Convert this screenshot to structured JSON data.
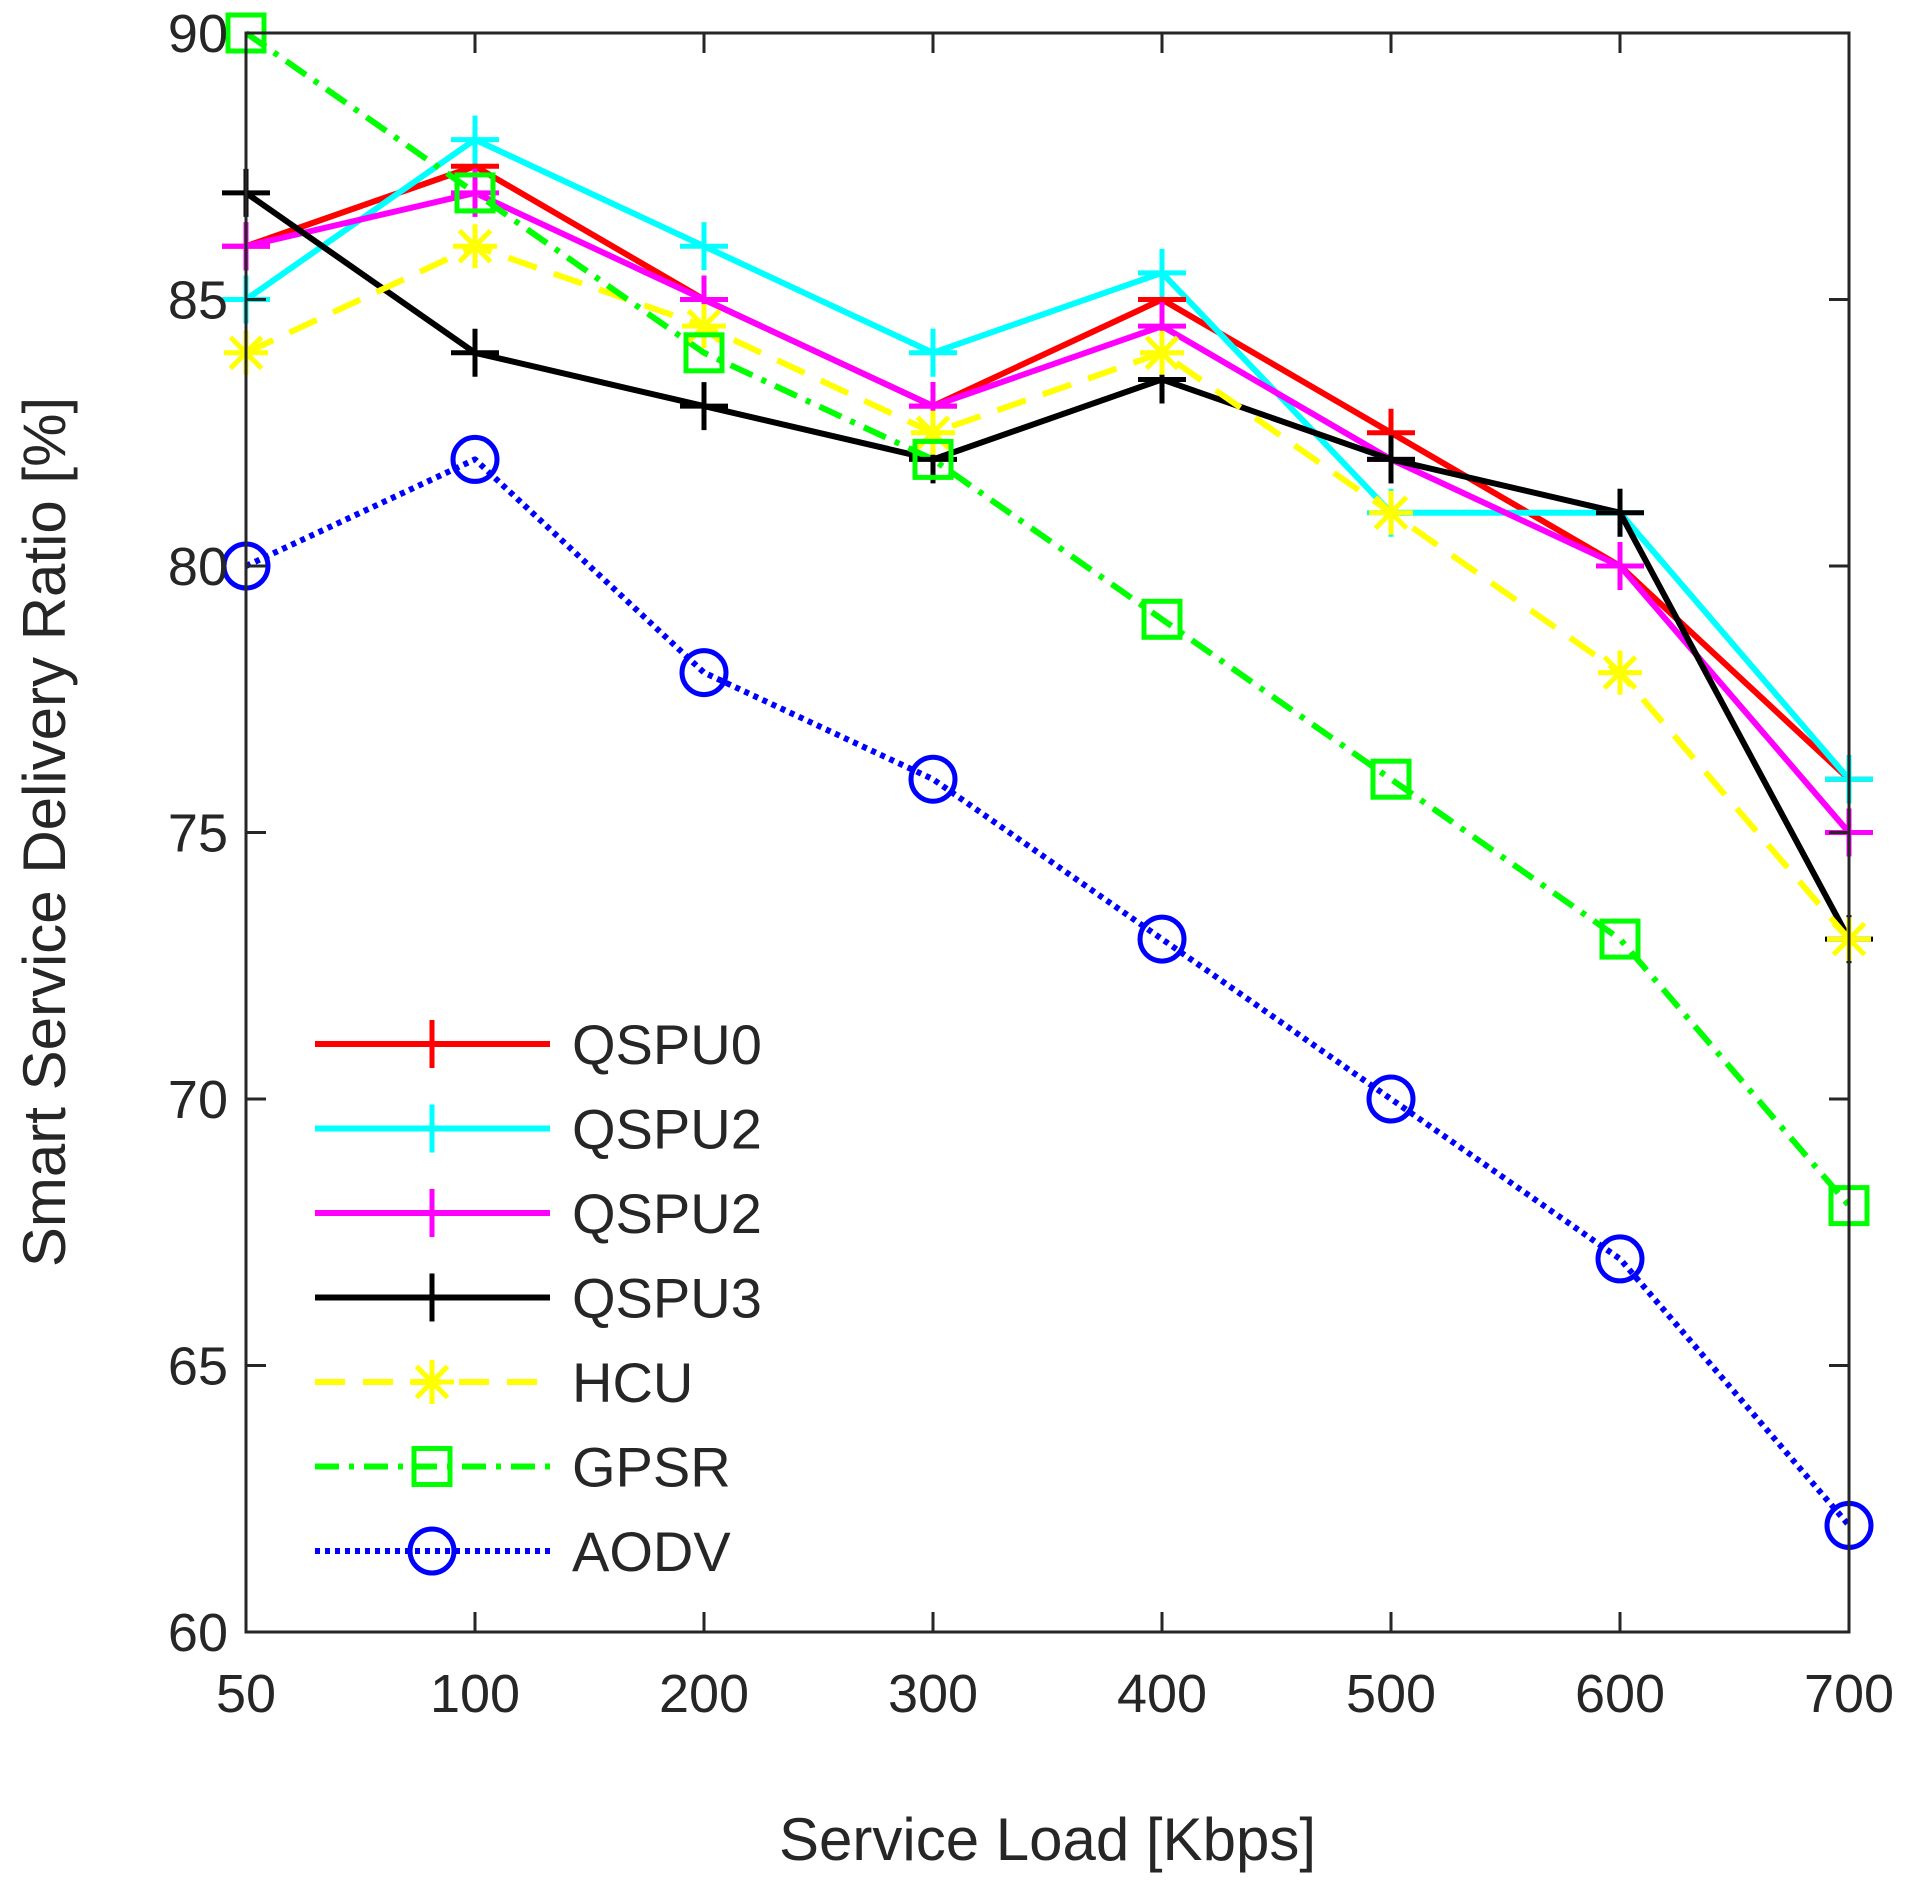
{
  "chart_data": {
    "type": "line",
    "title": "",
    "xlabel": "Service Load [Kbps]",
    "ylabel": "Smart Service Delivery Ratio [%]",
    "categories": [
      "50",
      "100",
      "200",
      "300",
      "400",
      "500",
      "600",
      "700"
    ],
    "ylim": [
      60,
      90
    ],
    "yticks": [
      "60",
      "65",
      "70",
      "75",
      "80",
      "85",
      "90"
    ],
    "grid": false,
    "legend_position": "bottom-left",
    "series": [
      {
        "name": "QSPU0",
        "color": "#ff0000",
        "dash": "solid",
        "marker": "plus",
        "values": [
          86,
          87.5,
          85,
          83,
          85,
          82.5,
          80,
          76
        ]
      },
      {
        "name": "QSPU2",
        "color": "#00ffff",
        "dash": "solid",
        "marker": "plus",
        "values": [
          85,
          88,
          86,
          84,
          85.5,
          81,
          81,
          76
        ]
      },
      {
        "name": "QSPU2",
        "color": "#ff00ff",
        "dash": "solid",
        "marker": "plus",
        "values": [
          86,
          87,
          85,
          83,
          84.5,
          82,
          80,
          75
        ]
      },
      {
        "name": "QSPU3",
        "color": "#000000",
        "dash": "solid",
        "marker": "plus",
        "values": [
          87,
          84,
          83,
          82,
          83.5,
          82,
          81,
          73
        ]
      },
      {
        "name": "HCU",
        "color": "#ffff00",
        "dash": "dashed",
        "marker": "asterisk",
        "values": [
          84,
          86,
          84.5,
          82.5,
          84,
          81,
          78,
          73
        ]
      },
      {
        "name": "GPSR",
        "color": "#00ff00",
        "dash": "dashdot",
        "marker": "square",
        "values": [
          90,
          87,
          84,
          82,
          79,
          76,
          73,
          68
        ]
      },
      {
        "name": "AODV",
        "color": "#0000ff",
        "dash": "dotted",
        "marker": "circle",
        "values": [
          80,
          82,
          78,
          76,
          73,
          70,
          67,
          62
        ]
      }
    ]
  }
}
